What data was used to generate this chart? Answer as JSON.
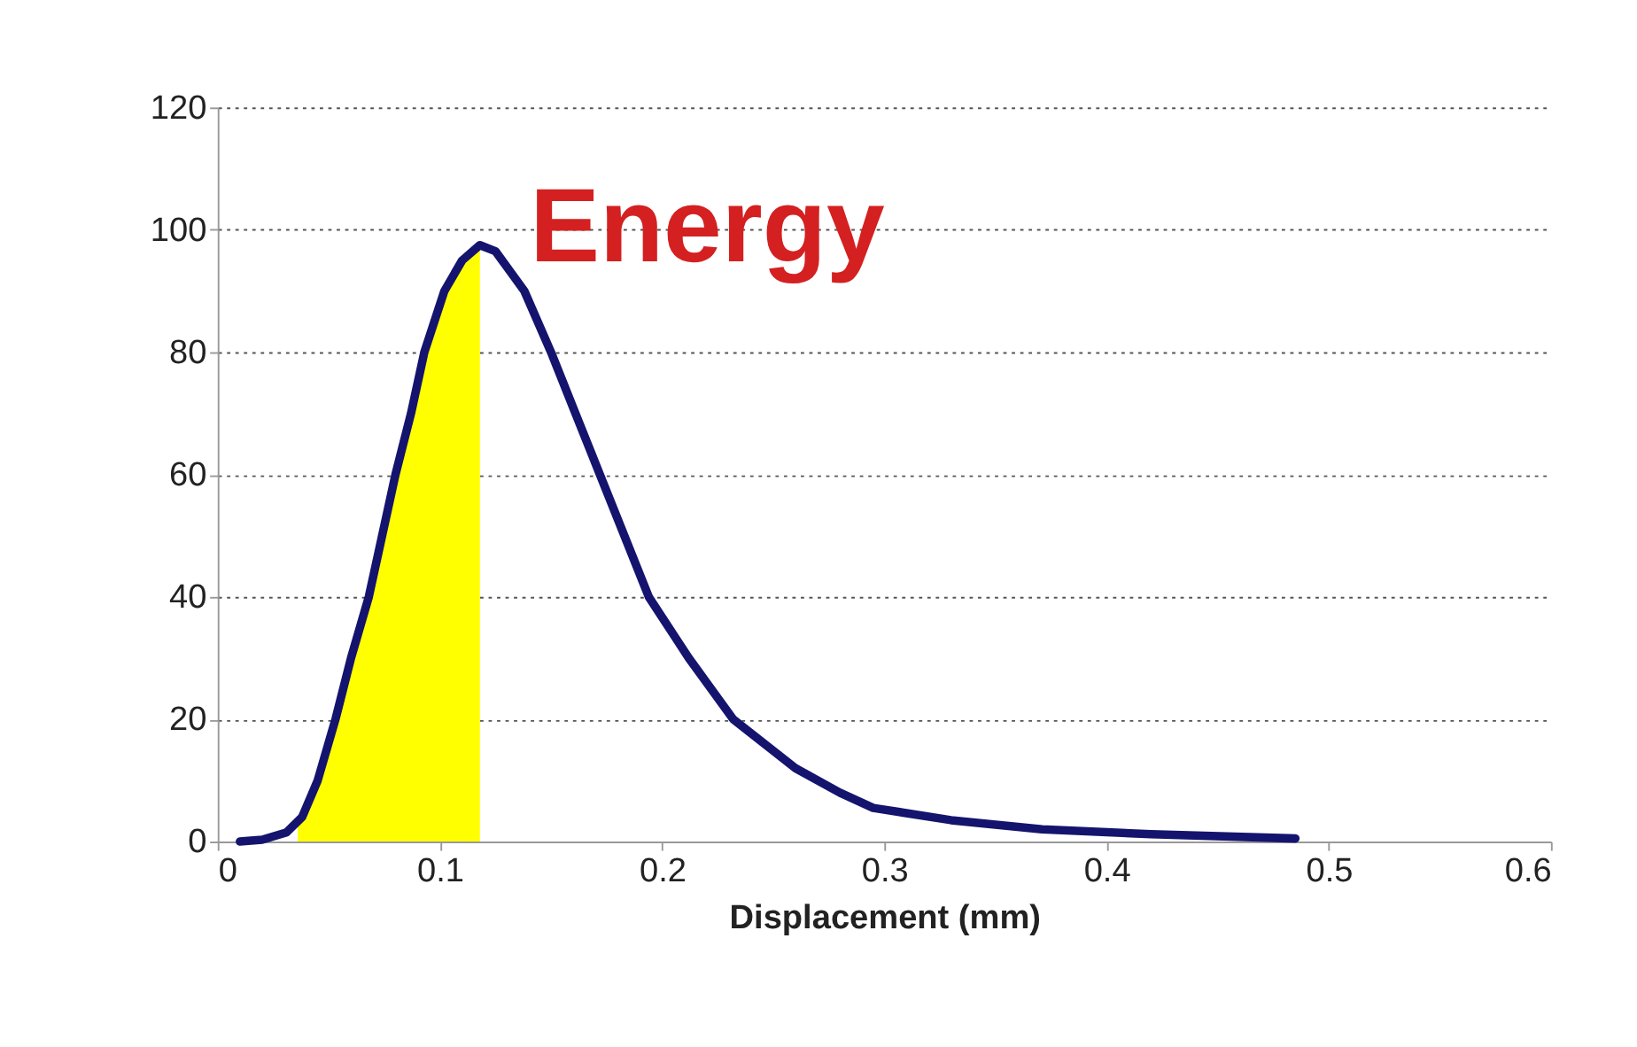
{
  "chart_data": {
    "type": "line",
    "xlabel": "Displacement (mm)",
    "annotations": [
      "Energy"
    ],
    "xlim": [
      0,
      0.6
    ],
    "xticks": [
      0,
      0.1,
      0.2,
      0.3,
      0.4,
      0.5,
      0.6
    ],
    "ylim": [
      0,
      120
    ],
    "yticks": [
      0,
      20,
      40,
      60,
      80,
      100,
      120
    ],
    "grid": "y",
    "line_style": "solid",
    "series": [
      {
        "type": "area",
        "color": "#ffff00",
        "x": [
          0.036,
          0.038,
          0.045,
          0.053,
          0.06,
          0.068,
          0.074,
          0.08,
          0.087,
          0.093,
          0.102,
          0.11,
          0.118
        ],
        "values": [
          3,
          4,
          10,
          20,
          30,
          40,
          50,
          60,
          70,
          80,
          90,
          95,
          97.5
        ]
      },
      {
        "color": "#14146e",
        "x": [
          0.01,
          0.02,
          0.031,
          0.038,
          0.045,
          0.053,
          0.06,
          0.068,
          0.074,
          0.08,
          0.087,
          0.093,
          0.102,
          0.11,
          0.118,
          0.125,
          0.132,
          0.138,
          0.15,
          0.161,
          0.172,
          0.183,
          0.194,
          0.212,
          0.232,
          0.26,
          0.28,
          0.295,
          0.33,
          0.371,
          0.42,
          0.485
        ],
        "values": [
          0,
          0.3,
          1.5,
          4,
          10,
          20,
          30,
          40,
          50,
          60,
          70,
          80,
          90,
          95,
          97.5,
          96.5,
          93,
          90,
          80,
          70,
          60,
          50,
          40,
          30,
          20,
          12,
          8,
          5.5,
          3.5,
          2,
          1.2,
          0.5
        ]
      }
    ]
  }
}
